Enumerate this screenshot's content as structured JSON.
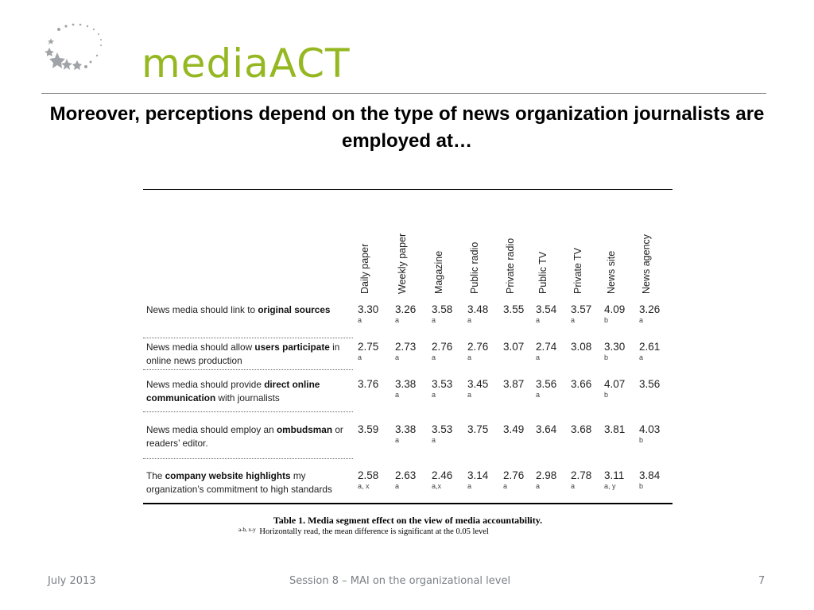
{
  "logo": {
    "text": "mediaACT",
    "colors": {
      "text": "#95b822",
      "stars": "#a0a4a8"
    }
  },
  "headline": "Moreover, perceptions depend on the type of news organization journalists are employed at…",
  "table": {
    "columns": [
      "Daily paper",
      "Weekly paper",
      "Magazine",
      "Public radio",
      "Private radio",
      "Public TV",
      "Private  TV",
      "News site",
      "News agency"
    ],
    "rows": [
      {
        "label_parts": [
          {
            "text": "News media should link to ",
            "bold": false
          },
          {
            "text": "original sources",
            "bold": true
          }
        ],
        "values": [
          "3.30",
          "3.26",
          "3.58",
          "3.48",
          "3.55",
          "3.54",
          "3.57",
          "4.09",
          "3.26"
        ],
        "sigs": [
          "a",
          "a",
          "a",
          "a",
          "",
          "a",
          "a",
          "b",
          "a"
        ]
      },
      {
        "label_parts": [
          {
            "text": "News media should allow ",
            "bold": false
          },
          {
            "text": "users participate",
            "bold": true
          },
          {
            "text": " in online news production",
            "bold": false
          }
        ],
        "values": [
          "2.75",
          "2.73",
          "2.76",
          "2.76",
          "3.07",
          "2.74",
          "3.08",
          "3.30",
          "2.61"
        ],
        "sigs": [
          "a",
          "a",
          "a",
          "a",
          "",
          "a",
          "",
          "b",
          "a"
        ]
      },
      {
        "label_parts": [
          {
            "text": "News media should provide ",
            "bold": false
          },
          {
            "text": "direct online communication",
            "bold": true
          },
          {
            "text": " with journalists",
            "bold": false
          }
        ],
        "values": [
          "3.76",
          "3.38",
          "3.53",
          "3.45",
          "3.87",
          "3.56",
          "3.66",
          "4.07",
          "3.56"
        ],
        "sigs": [
          "",
          "a",
          "a",
          "a",
          "",
          "a",
          "",
          "b",
          ""
        ]
      },
      {
        "label_parts": [
          {
            "text": "News media should employ an ",
            "bold": false
          },
          {
            "text": "ombudsman",
            "bold": true
          },
          {
            "text": " or readers’ editor.",
            "bold": false
          }
        ],
        "values": [
          "3.59",
          "3.38",
          "3.53",
          "3.75",
          "3.49",
          "3.64",
          "3.68",
          "3.81",
          "4.03"
        ],
        "sigs": [
          "",
          "a",
          "a",
          "",
          "",
          "",
          "",
          "",
          "b"
        ]
      },
      {
        "label_parts": [
          {
            "text": "The ",
            "bold": false
          },
          {
            "text": "company website highlights",
            "bold": true
          },
          {
            "text": " my organization’s commitment to high standards",
            "bold": false
          }
        ],
        "values": [
          "2.58",
          "2.63",
          "2.46",
          "3.14",
          "2.76",
          "2.98",
          "2.78",
          "3.11",
          "3.84"
        ],
        "sigs": [
          "a, x",
          "a",
          "a,x",
          "a",
          "a",
          "a",
          "a",
          "a, y",
          "b"
        ]
      }
    ]
  },
  "caption": "Table  1. Media segment effect on the view of media accountability.",
  "note": {
    "superscript": "a-b, x-y",
    "text": " Horizontally read, the mean difference is significant at the 0.05 level"
  },
  "footer": {
    "date": "July 2013",
    "session": "Session 8 – MAI on the organizational level",
    "page": "7"
  }
}
